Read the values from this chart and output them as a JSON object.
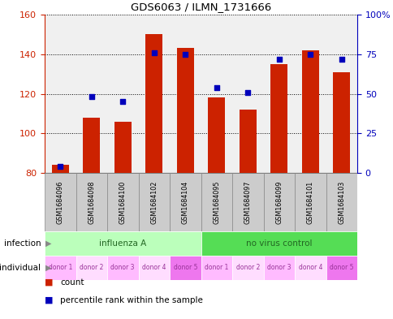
{
  "title": "GDS6063 / ILMN_1731666",
  "samples": [
    "GSM1684096",
    "GSM1684098",
    "GSM1684100",
    "GSM1684102",
    "GSM1684104",
    "GSM1684095",
    "GSM1684097",
    "GSM1684099",
    "GSM1684101",
    "GSM1684103"
  ],
  "counts": [
    84,
    108,
    106,
    150,
    143,
    118,
    112,
    135,
    142,
    131
  ],
  "percentiles": [
    4,
    48,
    45,
    76,
    75,
    54,
    51,
    72,
    75,
    72
  ],
  "ymin": 80,
  "ymax": 160,
  "yticks_left": [
    80,
    100,
    120,
    140,
    160
  ],
  "yticks_right": [
    0,
    25,
    50,
    75,
    100
  ],
  "infection_groups": [
    {
      "label": "influenza A",
      "start": 0,
      "end": 5,
      "color": "#bbffbb"
    },
    {
      "label": "no virus control",
      "start": 5,
      "end": 10,
      "color": "#55dd55"
    }
  ],
  "individual_labels": [
    "donor 1",
    "donor 2",
    "donor 3",
    "donor 4",
    "donor 5",
    "donor 1",
    "donor 2",
    "donor 3",
    "donor 4",
    "donor 5"
  ],
  "individual_colors": [
    "#ffbbff",
    "#ffddff",
    "#ffbbff",
    "#ffddff",
    "#ee77ee",
    "#ffbbff",
    "#ffddff",
    "#ffbbff",
    "#ffddff",
    "#ee77ee"
  ],
  "bar_color": "#cc2200",
  "dot_color": "#0000bb",
  "bar_bottom": 80,
  "bar_width": 0.55,
  "sample_box_color": "#cccccc",
  "sample_box_edge": "#888888",
  "label_color_infection": "#226622",
  "label_color_individual": "#993399",
  "plot_bg": "#f0f0f0",
  "legend_items": [
    {
      "color": "#cc2200",
      "label": "count"
    },
    {
      "color": "#0000bb",
      "label": "percentile rank within the sample"
    }
  ]
}
